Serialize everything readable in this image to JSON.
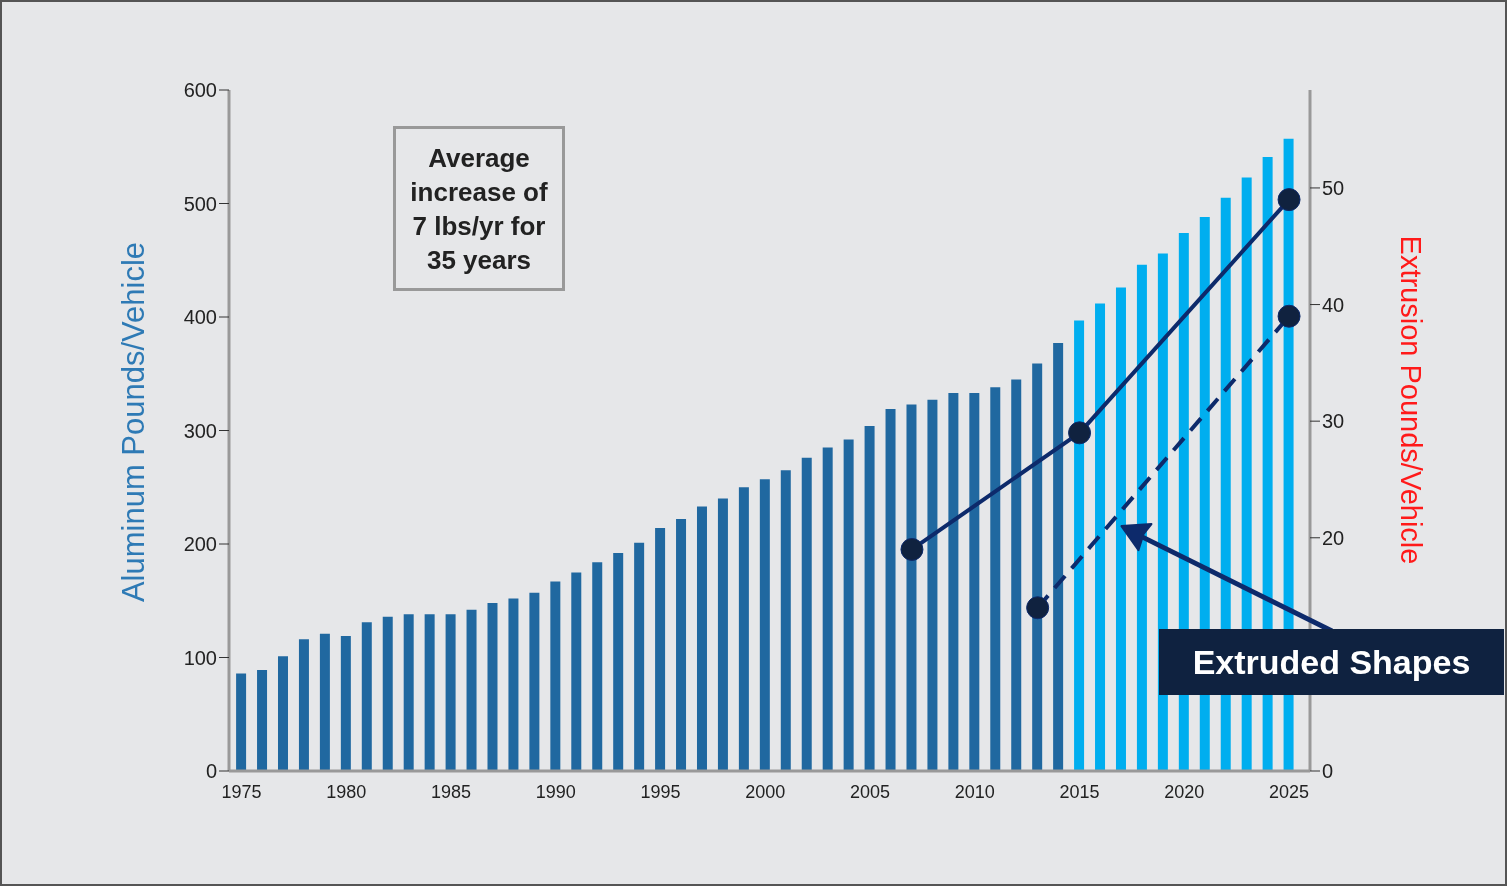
{
  "chart_data": {
    "type": "bar",
    "x": [
      1975,
      1976,
      1977,
      1978,
      1979,
      1980,
      1981,
      1982,
      1983,
      1984,
      1985,
      1986,
      1987,
      1988,
      1989,
      1990,
      1991,
      1992,
      1993,
      1994,
      1995,
      1996,
      1997,
      1998,
      1999,
      2000,
      2001,
      2002,
      2003,
      2004,
      2005,
      2006,
      2007,
      2008,
      2009,
      2010,
      2011,
      2012,
      2013,
      2014,
      2015,
      2016,
      2017,
      2018,
      2019,
      2020,
      2021,
      2022,
      2023,
      2024,
      2025
    ],
    "series": [
      {
        "values": [
          86,
          89,
          101,
          116,
          121,
          119,
          131,
          136,
          138,
          138,
          138,
          142,
          148,
          152,
          157,
          167,
          175,
          184,
          192,
          201,
          214,
          222,
          233,
          240,
          250,
          257,
          265,
          276,
          285,
          292,
          304,
          319,
          323,
          327,
          333,
          333,
          338,
          345,
          359,
          377,
          397,
          412,
          426,
          446,
          456,
          474,
          488,
          505,
          523,
          541,
          557
        ],
        "colors": [
          "#2068a0",
          "#2068a0",
          "#2068a0",
          "#2068a0",
          "#2068a0",
          "#2068a0",
          "#2068a0",
          "#2068a0",
          "#2068a0",
          "#2068a0",
          "#2068a0",
          "#2068a0",
          "#2068a0",
          "#2068a0",
          "#2068a0",
          "#2068a0",
          "#2068a0",
          "#2068a0",
          "#2068a0",
          "#2068a0",
          "#2068a0",
          "#2068a0",
          "#2068a0",
          "#2068a0",
          "#2068a0",
          "#2068a0",
          "#2068a0",
          "#2068a0",
          "#2068a0",
          "#2068a0",
          "#2068a0",
          "#2068a0",
          "#2068a0",
          "#2068a0",
          "#2068a0",
          "#2068a0",
          "#2068a0",
          "#2068a0",
          "#2068a0",
          "#2068a0",
          "#00aeef",
          "#00aeef",
          "#00aeef",
          "#00aeef",
          "#00aeef",
          "#00aeef",
          "#00aeef",
          "#00aeef",
          "#00aeef",
          "#00aeef",
          "#00aeef"
        ]
      },
      {
        "type": "line",
        "axis": "y2",
        "x": [
          2007,
          2015,
          2025
        ],
        "values": [
          19,
          29,
          49
        ],
        "color": "#0d2a6b",
        "marker": "circle",
        "line_style": "solid"
      },
      {
        "type": "line",
        "axis": "y2",
        "x": [
          2013,
          2025
        ],
        "values": [
          14,
          39
        ],
        "color": "#0d2a6b",
        "marker": "circle",
        "line_style": "dashed"
      }
    ],
    "xlim": [
      1974.4,
      2026
    ],
    "xticks": [
      1975,
      1980,
      1985,
      1990,
      1995,
      2000,
      2005,
      2010,
      2015,
      2020,
      2025
    ],
    "ylim": [
      0,
      600
    ],
    "yticks": [
      0,
      100,
      200,
      300,
      400,
      500,
      600
    ],
    "y2lim": [
      0,
      58.4
    ],
    "y2ticks": [
      0,
      20,
      30,
      40,
      50
    ],
    "ylabel": "Aluminum Pounds/Vehicle",
    "y2label": "Extrusion Pounds/Vehicle",
    "annotations": [
      "Average increase of 7 lbs/yr for 35 years",
      {
        "text": "Extruded Shapes",
        "x": 2017,
        "y": 21
      }
    ]
  }
}
